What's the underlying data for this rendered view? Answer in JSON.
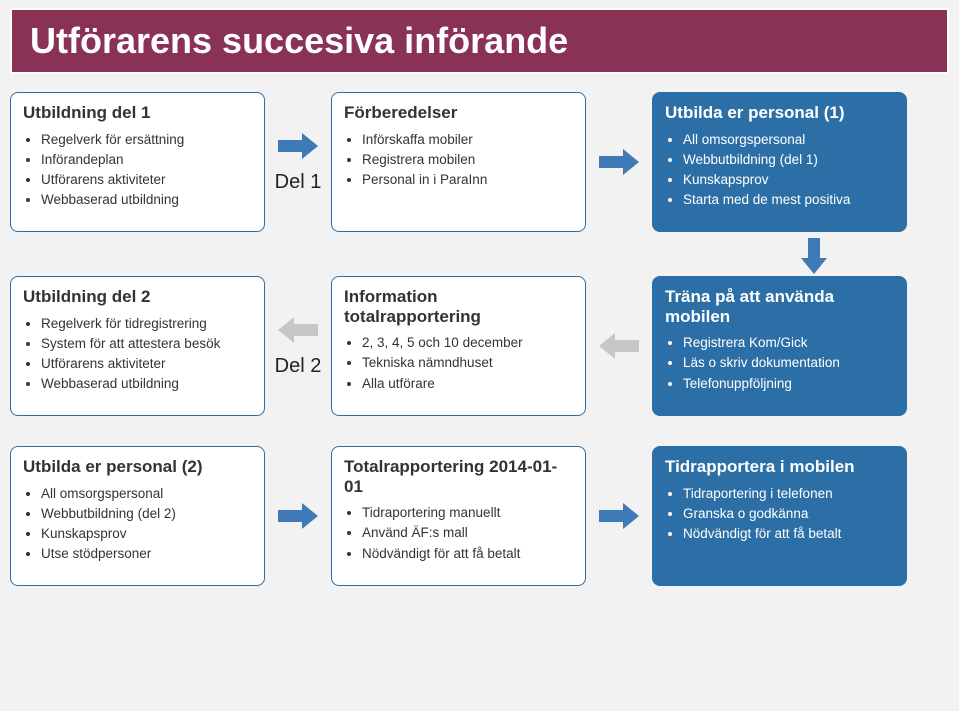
{
  "colors": {
    "title_bg": "#8a3156",
    "page_bg": "#f2f2f2",
    "card_border": "#2c6fa6",
    "card_blue_bg": "#2c6fa6",
    "arrow_blue": "#3e7ab5",
    "arrow_grey": "#c7c7c7",
    "text_white": "#ffffff",
    "text_dark": "#333333"
  },
  "title": "Utförarens succesiva införande",
  "section_labels": {
    "del1": "Del 1",
    "del2": "Del 2"
  },
  "row1": {
    "card1": {
      "heading": "Utbildning del 1",
      "items": [
        "Regelverk för ersättning",
        "Införandeplan",
        "Utförarens aktiviteter",
        "Webbaserad utbildning"
      ]
    },
    "card2": {
      "heading": "Förberedelser",
      "items": [
        "Införskaffa mobiler",
        "Registrera mobilen",
        "Personal in i ParaInn"
      ]
    },
    "card3": {
      "heading": "Utbilda er personal (1)",
      "items": [
        "All omsorgspersonal",
        "Webbutbildning (del 1)",
        "Kunskapsprov",
        "Starta med de mest positiva"
      ]
    }
  },
  "row2": {
    "card1": {
      "heading": "Utbildning del 2",
      "items": [
        "Regelverk för tidregistrering",
        "System för att attestera besök",
        "Utförarens aktiviteter",
        "Webbaserad utbildning"
      ]
    },
    "card2": {
      "heading": "Information totalrapportering",
      "items": [
        "2, 3, 4, 5 och 10 december",
        "Tekniska nämndhuset",
        "Alla utförare"
      ]
    },
    "card3": {
      "heading": "Träna på att använda mobilen",
      "items": [
        "Registrera Kom/Gick",
        "Läs o skriv dokumentation",
        "Telefonuppföljning"
      ]
    }
  },
  "row3": {
    "card1": {
      "heading": "Utbilda er personal (2)",
      "items": [
        "All omsorgspersonal",
        "Webbutbildning (del 2)",
        "Kunskapsprov",
        "Utse stödpersoner"
      ]
    },
    "card2": {
      "heading": "Totalrapportering 2014-01-01",
      "items": [
        "Tidraportering manuellt",
        "Använd ÄF:s mall",
        "Nödvändigt för att få betalt"
      ]
    },
    "card3": {
      "heading": "Tidrapportera i mobilen",
      "items": [
        "Tidraportering i telefonen",
        "Granska o godkänna",
        "Nödvändigt för att få betalt"
      ]
    }
  },
  "arrows": {
    "r1a1": {
      "dir": "right",
      "color": "#3e7ab5"
    },
    "r1a2": {
      "dir": "right",
      "color": "#3e7ab5"
    },
    "down1": {
      "dir": "down",
      "color": "#3e7ab5"
    },
    "r2a1": {
      "dir": "left",
      "color": "#c7c7c7"
    },
    "r2a2": {
      "dir": "left",
      "color": "#c7c7c7"
    },
    "r3a1": {
      "dir": "right",
      "color": "#3e7ab5"
    },
    "r3a2": {
      "dir": "right",
      "color": "#3e7ab5"
    }
  }
}
